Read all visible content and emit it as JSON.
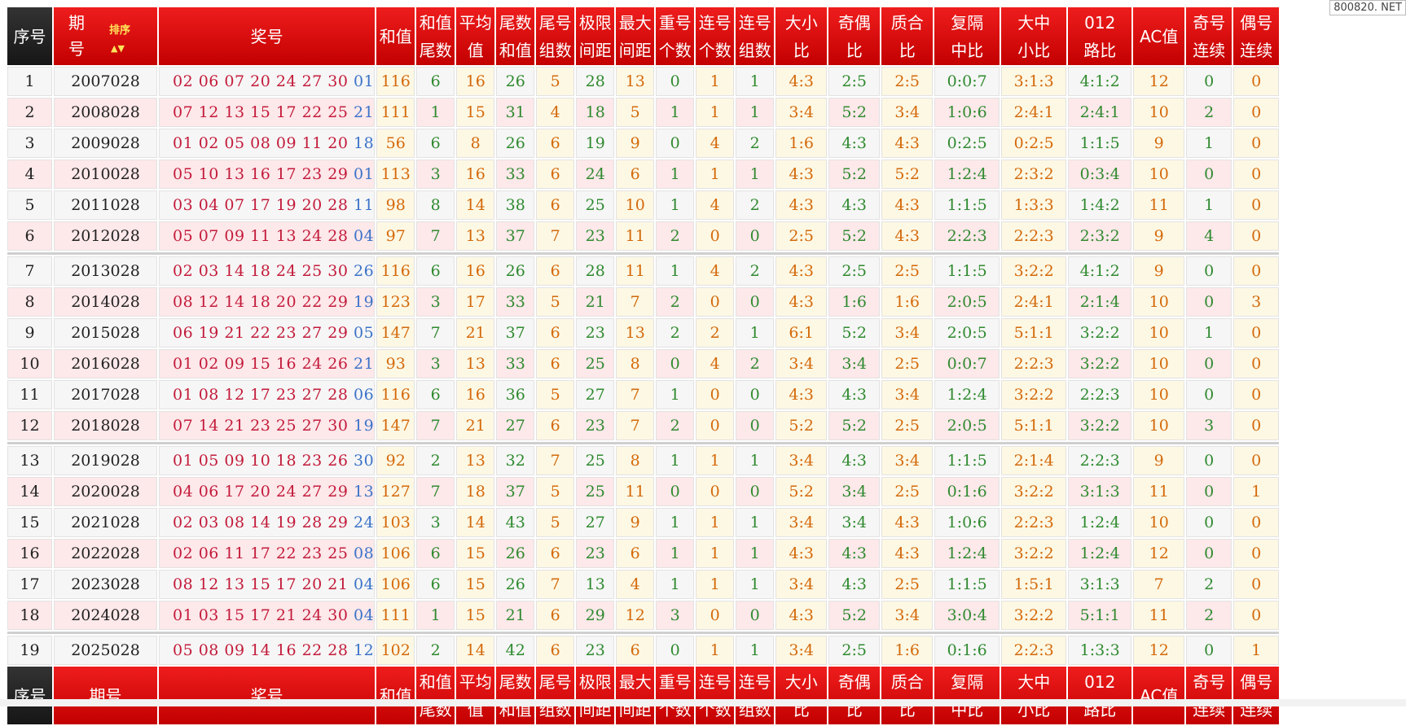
{
  "watermark": "800820. NET",
  "header": {
    "seq": "序号",
    "period": [
      "期",
      "号"
    ],
    "sort_label": "排序",
    "number": "奖号",
    "sum": "和值",
    "cols": [
      [
        "和值",
        "尾数"
      ],
      [
        "平均",
        "值"
      ],
      [
        "尾数",
        "和值"
      ],
      [
        "尾号",
        "组数"
      ],
      [
        "极限",
        "间距"
      ],
      [
        "最大",
        "间距"
      ],
      [
        "重号",
        "个数"
      ],
      [
        "连号",
        "个数"
      ],
      [
        "连号",
        "组数"
      ],
      [
        "大小",
        "比"
      ],
      [
        "奇偶",
        "比"
      ],
      [
        "质合",
        "比"
      ],
      [
        "复隔",
        "中比"
      ],
      [
        "大中",
        "小比"
      ],
      [
        "012",
        "路比"
      ]
    ],
    "ac": "AC值",
    "odd": [
      "奇号",
      "连续"
    ],
    "even": [
      "偶号",
      "连续"
    ]
  },
  "footer": {
    "seq": "序号",
    "period": "期号",
    "number": "奖号",
    "sum": "和值"
  },
  "rows": [
    {
      "seq": "1",
      "period": "2007028",
      "reds": "02 06 07 20 24 27 30",
      "blue": "01",
      "sum": "116",
      "v": [
        "6",
        "16",
        "26",
        "5",
        "28",
        "13",
        "0",
        "1",
        "1",
        "4:3",
        "2:5",
        "2:5",
        "0:0:7",
        "3:1:3",
        "4:1:2",
        "12",
        "0",
        "0"
      ]
    },
    {
      "seq": "2",
      "period": "2008028",
      "reds": "07 12 13 15 17 22 25",
      "blue": "21",
      "sum": "111",
      "v": [
        "1",
        "15",
        "31",
        "4",
        "18",
        "5",
        "1",
        "1",
        "1",
        "3:4",
        "5:2",
        "3:4",
        "1:0:6",
        "2:4:1",
        "2:4:1",
        "10",
        "2",
        "0"
      ]
    },
    {
      "seq": "3",
      "period": "2009028",
      "reds": "01 02 05 08 09 11 20",
      "blue": "18",
      "sum": "56",
      "v": [
        "6",
        "8",
        "26",
        "6",
        "19",
        "9",
        "0",
        "4",
        "2",
        "1:6",
        "4:3",
        "4:3",
        "0:2:5",
        "0:2:5",
        "1:1:5",
        "9",
        "1",
        "0"
      ]
    },
    {
      "seq": "4",
      "period": "2010028",
      "reds": "05 10 13 16 17 23 29",
      "blue": "01",
      "sum": "113",
      "v": [
        "3",
        "16",
        "33",
        "6",
        "24",
        "6",
        "1",
        "1",
        "1",
        "4:3",
        "5:2",
        "5:2",
        "1:2:4",
        "2:3:2",
        "0:3:4",
        "10",
        "0",
        "0"
      ]
    },
    {
      "seq": "5",
      "period": "2011028",
      "reds": "03 04 07 17 19 20 28",
      "blue": "11",
      "sum": "98",
      "v": [
        "8",
        "14",
        "38",
        "6",
        "25",
        "10",
        "1",
        "4",
        "2",
        "4:3",
        "4:3",
        "4:3",
        "1:1:5",
        "1:3:3",
        "1:4:2",
        "11",
        "1",
        "0"
      ]
    },
    {
      "seq": "6",
      "period": "2012028",
      "reds": "05 07 09 11 13 24 28",
      "blue": "04",
      "sum": "97",
      "v": [
        "7",
        "13",
        "37",
        "7",
        "23",
        "11",
        "2",
        "0",
        "0",
        "2:5",
        "5:2",
        "4:3",
        "2:2:3",
        "2:2:3",
        "2:3:2",
        "9",
        "4",
        "0"
      ]
    },
    {
      "seq": "7",
      "period": "2013028",
      "reds": "02 03 14 18 24 25 30",
      "blue": "26",
      "sum": "116",
      "v": [
        "6",
        "16",
        "26",
        "6",
        "28",
        "11",
        "1",
        "4",
        "2",
        "4:3",
        "2:5",
        "2:5",
        "1:1:5",
        "3:2:2",
        "4:1:2",
        "9",
        "0",
        "0"
      ]
    },
    {
      "seq": "8",
      "period": "2014028",
      "reds": "08 12 14 18 20 22 29",
      "blue": "19",
      "sum": "123",
      "v": [
        "3",
        "17",
        "33",
        "5",
        "21",
        "7",
        "2",
        "0",
        "0",
        "4:3",
        "1:6",
        "1:6",
        "2:0:5",
        "2:4:1",
        "2:1:4",
        "10",
        "0",
        "3"
      ]
    },
    {
      "seq": "9",
      "period": "2015028",
      "reds": "06 19 21 22 23 27 29",
      "blue": "05",
      "sum": "147",
      "v": [
        "7",
        "21",
        "37",
        "6",
        "23",
        "13",
        "2",
        "2",
        "1",
        "6:1",
        "5:2",
        "3:4",
        "2:0:5",
        "5:1:1",
        "3:2:2",
        "10",
        "1",
        "0"
      ]
    },
    {
      "seq": "10",
      "period": "2016028",
      "reds": "01 02 09 15 16 24 26",
      "blue": "21",
      "sum": "93",
      "v": [
        "3",
        "13",
        "33",
        "6",
        "25",
        "8",
        "0",
        "4",
        "2",
        "3:4",
        "3:4",
        "2:5",
        "0:0:7",
        "2:2:3",
        "3:2:2",
        "10",
        "0",
        "0"
      ]
    },
    {
      "seq": "11",
      "period": "2017028",
      "reds": "01 08 12 17 23 27 28",
      "blue": "06",
      "sum": "116",
      "v": [
        "6",
        "16",
        "36",
        "5",
        "27",
        "7",
        "1",
        "0",
        "0",
        "4:3",
        "4:3",
        "3:4",
        "1:2:4",
        "3:2:2",
        "2:2:3",
        "10",
        "0",
        "0"
      ]
    },
    {
      "seq": "12",
      "period": "2018028",
      "reds": "07 14 21 23 25 27 30",
      "blue": "19",
      "sum": "147",
      "v": [
        "7",
        "21",
        "27",
        "6",
        "23",
        "7",
        "2",
        "0",
        "0",
        "5:2",
        "5:2",
        "2:5",
        "2:0:5",
        "5:1:1",
        "3:2:2",
        "10",
        "3",
        "0"
      ]
    },
    {
      "seq": "13",
      "period": "2019028",
      "reds": "01 05 09 10 18 23 26",
      "blue": "30",
      "sum": "92",
      "v": [
        "2",
        "13",
        "32",
        "7",
        "25",
        "8",
        "1",
        "1",
        "1",
        "3:4",
        "4:3",
        "3:4",
        "1:1:5",
        "2:1:4",
        "2:2:3",
        "9",
        "0",
        "0"
      ]
    },
    {
      "seq": "14",
      "period": "2020028",
      "reds": "04 06 17 20 24 27 29",
      "blue": "13",
      "sum": "127",
      "v": [
        "7",
        "18",
        "37",
        "5",
        "25",
        "11",
        "0",
        "0",
        "0",
        "5:2",
        "3:4",
        "2:5",
        "0:1:6",
        "3:2:2",
        "3:1:3",
        "11",
        "0",
        "1"
      ]
    },
    {
      "seq": "15",
      "period": "2021028",
      "reds": "02 03 08 14 19 28 29",
      "blue": "24",
      "sum": "103",
      "v": [
        "3",
        "14",
        "43",
        "5",
        "27",
        "9",
        "1",
        "1",
        "1",
        "3:4",
        "3:4",
        "4:3",
        "1:0:6",
        "2:2:3",
        "1:2:4",
        "10",
        "0",
        "0"
      ]
    },
    {
      "seq": "16",
      "period": "2022028",
      "reds": "02 06 11 17 22 23 25",
      "blue": "08",
      "sum": "106",
      "v": [
        "6",
        "15",
        "26",
        "6",
        "23",
        "6",
        "1",
        "1",
        "1",
        "4:3",
        "4:3",
        "4:3",
        "1:2:4",
        "3:2:2",
        "1:2:4",
        "12",
        "0",
        "0"
      ]
    },
    {
      "seq": "17",
      "period": "2023028",
      "reds": "08 12 13 15 17 20 21",
      "blue": "04",
      "sum": "106",
      "v": [
        "6",
        "15",
        "26",
        "7",
        "13",
        "4",
        "1",
        "1",
        "1",
        "3:4",
        "4:3",
        "2:5",
        "1:1:5",
        "1:5:1",
        "3:1:3",
        "7",
        "2",
        "0"
      ]
    },
    {
      "seq": "18",
      "period": "2024028",
      "reds": "01 03 15 17 21 24 30",
      "blue": "04",
      "sum": "111",
      "v": [
        "1",
        "15",
        "21",
        "6",
        "29",
        "12",
        "3",
        "0",
        "0",
        "4:3",
        "5:2",
        "3:4",
        "3:0:4",
        "3:2:2",
        "5:1:1",
        "11",
        "2",
        "0"
      ]
    },
    {
      "seq": "19",
      "period": "2025028",
      "reds": "05 08 09 14 16 22 28",
      "blue": "12",
      "sum": "102",
      "v": [
        "2",
        "14",
        "42",
        "6",
        "23",
        "6",
        "0",
        "1",
        "1",
        "3:4",
        "2:5",
        "1:6",
        "0:1:6",
        "2:2:3",
        "1:3:3",
        "12",
        "0",
        "1"
      ]
    }
  ],
  "colors": {
    "header_red": "#d40000",
    "red_number": "#c31b3a",
    "blue_number": "#3c73c8",
    "orange": "#d4690a",
    "green": "#2f8a2f"
  }
}
